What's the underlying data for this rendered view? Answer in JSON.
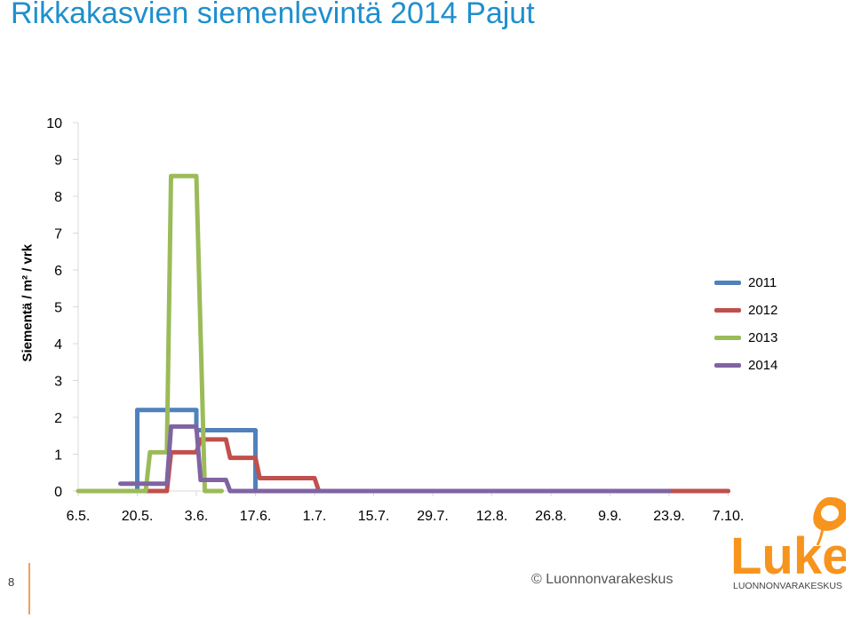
{
  "title": "Rikkakasvien siemenlevintä 2014  Pajut",
  "footer": {
    "page_number": "8",
    "copyright": "© Luonnonvarakeskus",
    "logo_text": "Luke",
    "logo_subtext": "LUONNONVARAKESKUS"
  },
  "chart_data": {
    "type": "line",
    "title": "",
    "xlabel": "",
    "ylabel": "Siementä / m² / vrk",
    "ylim": [
      0,
      10
    ],
    "yticks": [
      "0",
      "1",
      "2",
      "3",
      "4",
      "5",
      "6",
      "7",
      "8",
      "9",
      "10"
    ],
    "xtick_labels": [
      "6.5.",
      "20.5.",
      "3.6.",
      "17.6.",
      "1.7.",
      "15.7.",
      "29.7.",
      "12.8.",
      "26.8.",
      "9.9.",
      "23.9.",
      "7.10."
    ],
    "legend_position": "right",
    "grid": true,
    "series": [
      {
        "name": "2011",
        "color": "#4f81bd",
        "points": [
          [
            "20.5.",
            0
          ],
          [
            "20.5.",
            2.2
          ],
          [
            "3.6.",
            2.2
          ],
          [
            "3.6.",
            1.65
          ],
          [
            "17.6.",
            1.65
          ],
          [
            "17.6.",
            0
          ],
          [
            "7.10.",
            0
          ]
        ]
      },
      {
        "name": "2012",
        "color": "#c0504d",
        "points": [
          [
            "20.5.",
            0
          ],
          [
            "27.5.",
            0
          ],
          [
            "28.5.",
            1.05
          ],
          [
            "3.6.",
            1.05
          ],
          [
            "4.6.",
            1.4
          ],
          [
            "10.6.",
            1.4
          ],
          [
            "11.6.",
            0.9
          ],
          [
            "17.6.",
            0.9
          ],
          [
            "18.6.",
            0.35
          ],
          [
            "1.7.",
            0.35
          ],
          [
            "2.7.",
            0
          ],
          [
            "7.10.",
            0
          ]
        ]
      },
      {
        "name": "2013",
        "color": "#9bbb59",
        "points": [
          [
            "6.5.",
            0
          ],
          [
            "22.5.",
            0
          ],
          [
            "23.5.",
            1.05
          ],
          [
            "27.5.",
            1.05
          ],
          [
            "28.5.",
            8.55
          ],
          [
            "3.6.",
            8.55
          ],
          [
            "5.6.",
            0
          ],
          [
            "9.6.",
            0
          ]
        ]
      },
      {
        "name": "2014",
        "color": "#8064a2",
        "points": [
          [
            "16.5.",
            0.2
          ],
          [
            "27.5.",
            0.2
          ],
          [
            "28.5.",
            1.75
          ],
          [
            "3.6.",
            1.75
          ],
          [
            "4.6.",
            0.3
          ],
          [
            "10.6.",
            0.3
          ],
          [
            "11.6.",
            0
          ],
          [
            "23.9.",
            0
          ]
        ]
      }
    ]
  }
}
